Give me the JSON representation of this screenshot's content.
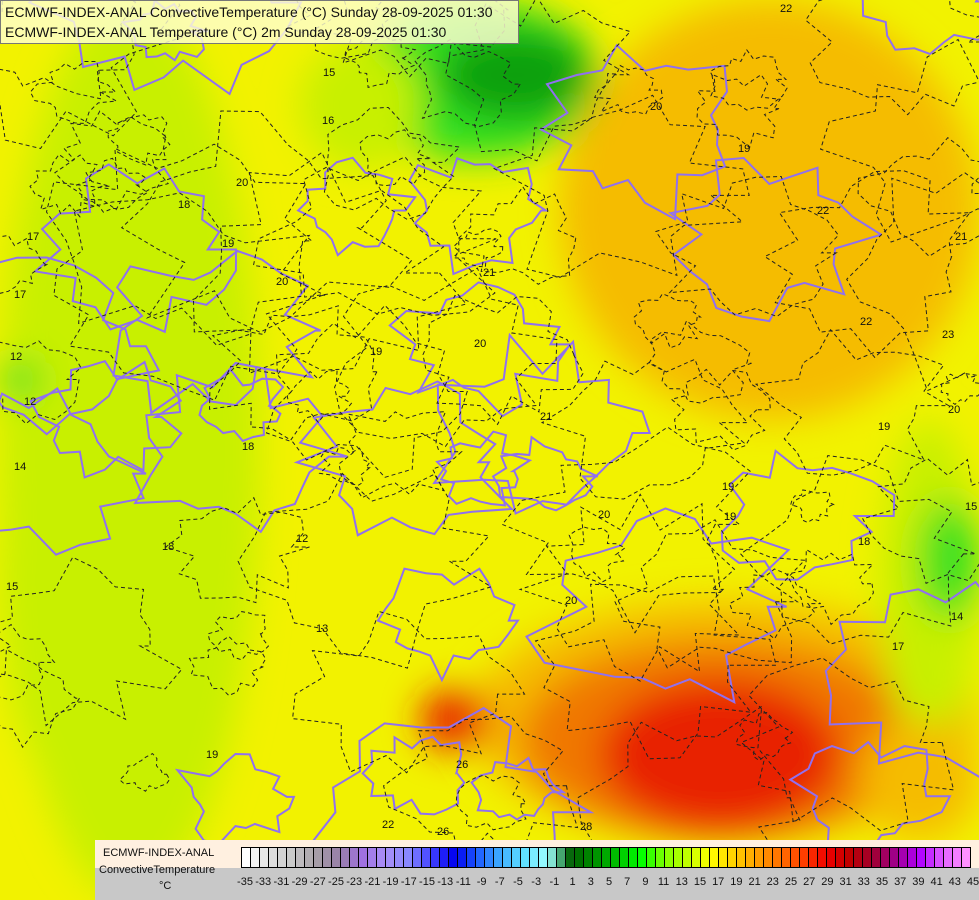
{
  "header": {
    "line1": "ECMWF-INDEX-ANAL ConvectiveTemperature (°C) Sunday 28-09-2025 01:30",
    "line2": "ECMWF-INDEX-ANAL Temperature (°C) 2m Sunday 28-09-2025 01:30"
  },
  "legend": {
    "model": "ECMWF-INDEX-ANAL",
    "variable": "ConvectiveTemperature",
    "unit": "°C",
    "tick_labels": [
      "-35",
      "-33",
      "-31",
      "-29",
      "-27",
      "-25",
      "-23",
      "-21",
      "-19",
      "-17",
      "-15",
      "-13",
      "-11",
      "-9",
      "-7",
      "-5",
      "-3",
      "-1",
      "1",
      "3",
      "5",
      "7",
      "9",
      "11",
      "13",
      "15",
      "17",
      "19",
      "21",
      "23",
      "25",
      "27",
      "29",
      "31",
      "33",
      "35",
      "37",
      "39",
      "41",
      "43",
      "45"
    ],
    "color_stops": [
      "#ffffff",
      "#e0e0e0",
      "#c8c8c8",
      "#a8a0a8",
      "#9880a8",
      "#a070e0",
      "#a890f8",
      "#8888ff",
      "#4040ff",
      "#0000f0",
      "#2060ff",
      "#40b0ff",
      "#60e0ff",
      "#a0ffff",
      "#006000",
      "#009000",
      "#00c000",
      "#00ff00",
      "#80ff00",
      "#c0ff00",
      "#ffff00",
      "#ffd000",
      "#ffa000",
      "#ff7000",
      "#ff4000",
      "#f00000",
      "#c00000",
      "#a00030",
      "#a00090",
      "#b000ff",
      "#e060ff",
      "#ff90ff"
    ]
  },
  "map": {
    "colors": {
      "yellow": "#f2f200",
      "lime": "#c8f000",
      "green": "#30e020",
      "darkgreen": "#10a010",
      "orange": "#f5bc00",
      "deeporange": "#f07800",
      "red": "#e82000",
      "isoline": "#9070f0",
      "border": "#e8d0c0"
    },
    "contour_labels": [
      "22",
      "21",
      "22",
      "20",
      "19",
      "16",
      "15",
      "17",
      "18",
      "20",
      "19",
      "20",
      "21",
      "19",
      "20",
      "18",
      "17",
      "14",
      "12",
      "18",
      "19",
      "18",
      "15",
      "12",
      "19",
      "20",
      "21",
      "22",
      "23",
      "20",
      "19",
      "17",
      "14",
      "12",
      "15",
      "26",
      "28",
      "26",
      "22",
      "20",
      "19",
      "13"
    ]
  }
}
